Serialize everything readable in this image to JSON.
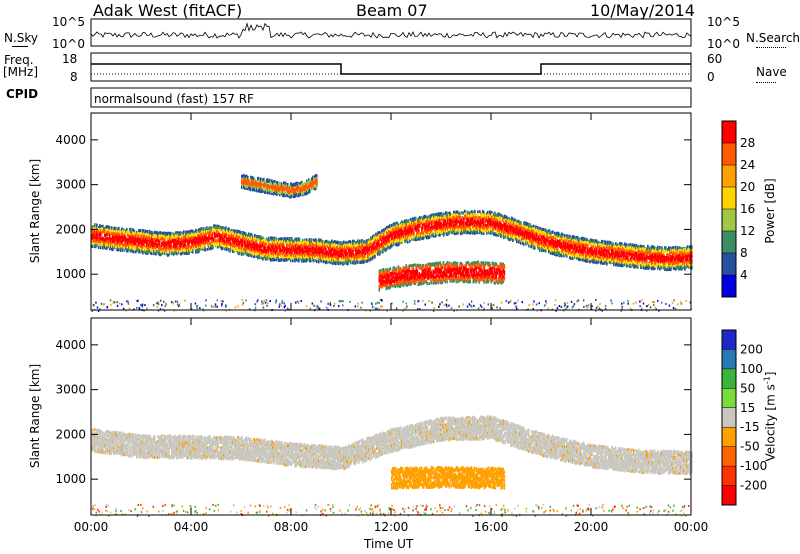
{
  "header": {
    "site_title": "Adak West (fitACF)",
    "beam": "Beam 07",
    "date": "10/May/2014"
  },
  "strip_labels": {
    "nsky": "N.Sky",
    "nsearch": "N.Search",
    "freq": "Freq.",
    "freq_unit": "[MHz]",
    "nave": "Nave",
    "cpid": "CPID",
    "program": "normalsound (fast) 157 RF"
  },
  "strip_ticks": {
    "nsky_left": [
      "10^5",
      "10^0"
    ],
    "nsky_right": [
      "10^5",
      "10^0"
    ],
    "freq_left": [
      "18",
      "8"
    ],
    "nave_right": [
      "60",
      "0"
    ]
  },
  "chart_data": [
    {
      "type": "heatmap",
      "name_key": "power",
      "title": "",
      "xlabel": "",
      "ylabel": "Slant Range [km]",
      "xlim_hours": [
        0,
        24
      ],
      "ylim_km": [
        200,
        4600
      ],
      "x_ticks": [
        "00:00",
        "04:00",
        "08:00",
        "12:00",
        "16:00",
        "20:00",
        "00:00"
      ],
      "y_ticks": [
        "1000",
        "2000",
        "3000",
        "4000"
      ],
      "colorbar": {
        "label": "Power [dB]",
        "labels": [
          "28",
          "24",
          "20",
          "16",
          "12",
          "8",
          "4"
        ],
        "colors": [
          "#ff0000",
          "#ff5a00",
          "#ffa000",
          "#ffd400",
          "#a0c848",
          "#3c8c64",
          "#2850a0",
          "#0000e0"
        ]
      },
      "bands": [
        {
          "desc": "main echo band",
          "x": [
            0,
            1,
            2,
            3,
            4,
            5,
            6,
            7,
            8,
            9,
            10,
            11,
            12,
            13,
            14,
            15,
            16,
            17,
            18,
            19,
            20,
            21,
            22,
            23,
            24
          ],
          "center_km": [
            1900,
            1820,
            1760,
            1700,
            1750,
            1880,
            1720,
            1600,
            1580,
            1560,
            1500,
            1550,
            1900,
            2050,
            2150,
            2200,
            2180,
            2000,
            1800,
            1650,
            1550,
            1480,
            1420,
            1380,
            1400
          ]
        },
        {
          "desc": "enhanced echo 12-17 UT",
          "x": [
            11.5,
            12.5,
            13.5,
            14.5,
            15.5,
            16.5
          ],
          "center_km": [
            900,
            1000,
            1050,
            1080,
            1080,
            1050
          ]
        },
        {
          "desc": "upper echo 6-9 UT",
          "x": [
            6,
            7,
            8,
            8.5,
            9
          ],
          "center_km": [
            3100,
            3000,
            2900,
            2950,
            3100
          ]
        }
      ]
    },
    {
      "type": "heatmap",
      "name_key": "velocity",
      "title": "",
      "xlabel": "Time UT",
      "ylabel": "Slant Range [km]",
      "xlim_hours": [
        0,
        24
      ],
      "ylim_km": [
        200,
        4600
      ],
      "x_ticks": [
        "00:00",
        "04:00",
        "08:00",
        "12:00",
        "16:00",
        "20:00",
        "00:00"
      ],
      "y_ticks": [
        "1000",
        "2000",
        "3000",
        "4000"
      ],
      "colorbar": {
        "label": "Velocity [m s^-1]",
        "labels": [
          "200",
          "100",
          "50",
          "15",
          "-15",
          "-50",
          "-100",
          "-200"
        ],
        "colors": [
          "#1e28c8",
          "#2878b4",
          "#3cb43c",
          "#78dc3c",
          "#c8c8c0",
          "#ffa000",
          "#ff6400",
          "#ff3200",
          "#ff0000"
        ]
      },
      "bands": [
        {
          "desc": "ground scatter band (near zero velocity)",
          "x": [
            0,
            2,
            4,
            6,
            8,
            10,
            12,
            14,
            16,
            18,
            20,
            22,
            24
          ],
          "center_km": [
            1900,
            1760,
            1750,
            1720,
            1580,
            1500,
            1900,
            2150,
            2180,
            1800,
            1550,
            1420,
            1400
          ]
        },
        {
          "desc": "negative velocity patch 12-16.5 UT",
          "x": [
            12,
            14,
            16.5
          ],
          "center_km": [
            1050,
            1080,
            1050
          ]
        }
      ]
    }
  ],
  "time_axis_label": "Time UT"
}
